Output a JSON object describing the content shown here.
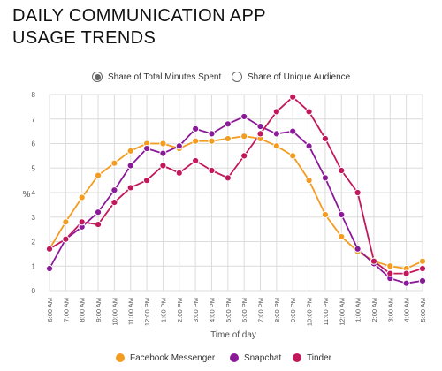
{
  "title": {
    "line1": "DAILY COMMUNICATION APP",
    "line2": "USAGE TRENDS"
  },
  "toggles": [
    {
      "label": "Share of Total Minutes Spent",
      "selected": true
    },
    {
      "label": "Share of Unique Audience",
      "selected": false
    }
  ],
  "chart_data": {
    "type": "line",
    "title": "DAILY COMMUNICATION APP USAGE TRENDS",
    "xlabel": "Time of day",
    "ylabel": "%",
    "ylim": [
      0,
      8
    ],
    "yticks": [
      0,
      1,
      2,
      3,
      4,
      5,
      6,
      7,
      8
    ],
    "grid": true,
    "legend_position": "bottom-center",
    "categories": [
      "6:00 AM",
      "7:00 AM",
      "8:00 AM",
      "9:00 AM",
      "10:00 AM",
      "11:00 AM",
      "12:00 PM",
      "1:00 PM",
      "2:00 PM",
      "3:00 PM",
      "4:00 PM",
      "5:00 PM",
      "6:00 PM",
      "7:00 PM",
      "8:00 PM",
      "9:00 PM",
      "10:00 PM",
      "11:00 PM",
      "12:00 AM",
      "1:00 AM",
      "2:00 AM",
      "3:00 AM",
      "4:00 AM",
      "5:00 AM"
    ],
    "series": [
      {
        "name": "Facebook Messenger",
        "color": "#f39c1f",
        "values": [
          1.7,
          2.8,
          3.8,
          4.7,
          5.2,
          5.7,
          6.0,
          6.0,
          5.8,
          6.1,
          6.1,
          6.2,
          6.3,
          6.2,
          5.9,
          5.5,
          4.5,
          3.1,
          2.2,
          1.6,
          1.2,
          1.0,
          0.9,
          1.2
        ]
      },
      {
        "name": "Snapchat",
        "color": "#8b1a99",
        "values": [
          0.9,
          2.1,
          2.6,
          3.2,
          4.1,
          5.1,
          5.8,
          5.6,
          5.9,
          6.6,
          6.4,
          6.8,
          7.1,
          6.7,
          6.4,
          6.5,
          5.9,
          4.6,
          3.1,
          1.7,
          1.1,
          0.5,
          0.3,
          0.4
        ]
      },
      {
        "name": "Tinder",
        "color": "#c2185b",
        "values": [
          1.7,
          2.1,
          2.8,
          2.7,
          3.6,
          4.2,
          4.5,
          5.1,
          4.8,
          5.3,
          4.9,
          4.6,
          5.5,
          6.4,
          7.3,
          7.9,
          7.3,
          6.2,
          4.9,
          4.0,
          1.2,
          0.7,
          0.7,
          0.9
        ]
      }
    ]
  }
}
